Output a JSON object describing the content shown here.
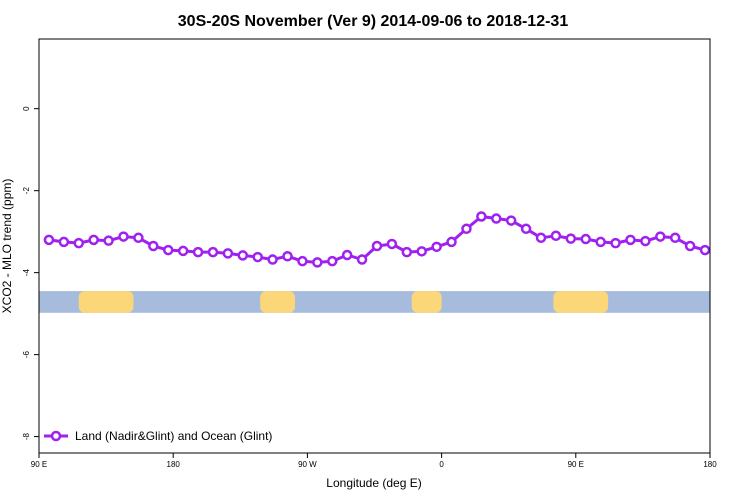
{
  "chart_data": {
    "type": "line",
    "title": "30S-20S November (Ver 9)   2014-09-06 to 2018-12-31",
    "xlabel": "Longitude (deg E)",
    "ylabel": "XCO2 - MLO trend (ppm)",
    "xlim": [
      -90,
      180
    ],
    "ylim": [
      -8.4,
      1.7
    ],
    "x_ticks": [
      {
        "value": -90,
        "label": "90 E"
      },
      {
        "value": -36,
        "label": "180"
      },
      {
        "value": 18,
        "label": "90 W"
      },
      {
        "value": 72,
        "label": "0"
      },
      {
        "value": 126,
        "label": "90 E"
      },
      {
        "value": 180,
        "label": "180"
      }
    ],
    "y_ticks": [
      {
        "value": 0,
        "label": "0"
      },
      {
        "value": -2,
        "label": "-2"
      },
      {
        "value": -4,
        "label": "-4"
      },
      {
        "value": -6,
        "label": "-6"
      },
      {
        "value": -8,
        "label": "-8"
      }
    ],
    "grid": false,
    "legend": {
      "position": "bottom-left"
    },
    "series": [
      {
        "name": "Land (Nadir&Glint) and Ocean (Glint)",
        "color": "#a020f0",
        "x": [
          -86,
          -80,
          -74,
          -68,
          -62,
          -56,
          -50,
          -44,
          -38,
          -32,
          -26,
          -20,
          -14,
          -8,
          -2,
          4,
          10,
          16,
          22,
          28,
          34,
          40,
          46,
          52,
          58,
          64,
          70,
          76,
          82,
          88,
          94,
          100,
          106,
          112,
          118,
          124,
          130,
          136,
          142,
          148,
          154,
          160,
          166,
          172,
          178
        ],
        "y": [
          -3.2,
          -3.25,
          -3.28,
          -3.2,
          -3.22,
          -3.12,
          -3.15,
          -3.35,
          -3.45,
          -3.47,
          -3.5,
          -3.5,
          -3.53,
          -3.58,
          -3.62,
          -3.68,
          -3.6,
          -3.72,
          -3.75,
          -3.72,
          -3.57,
          -3.68,
          -3.35,
          -3.3,
          -3.5,
          -3.48,
          -3.37,
          -3.25,
          -2.93,
          -2.63,
          -2.68,
          -2.73,
          -2.93,
          -3.15,
          -3.1,
          -3.17,
          -3.18,
          -3.25,
          -3.28,
          -3.2,
          -3.23,
          -3.12,
          -3.15,
          -3.35,
          -3.45
        ]
      }
    ],
    "map_band": {
      "y_range": [
        -4.45,
        -4.98
      ],
      "ocean_color": "#a7bcdd",
      "land_color": "#fcd77a",
      "land_segments": [
        [
          -74,
          -52
        ],
        [
          -1,
          13
        ],
        [
          60,
          72
        ],
        [
          117,
          139
        ]
      ]
    }
  }
}
